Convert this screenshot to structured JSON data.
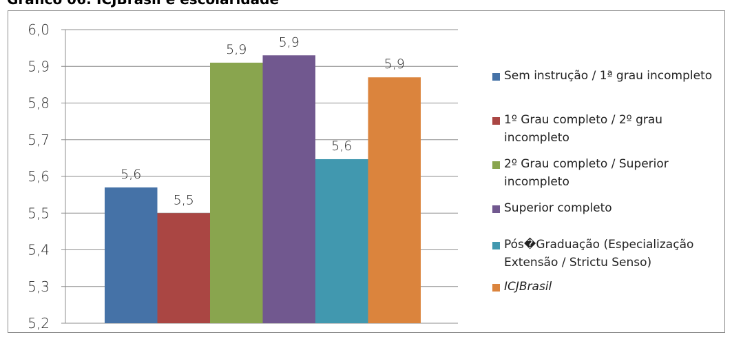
{
  "page": {
    "title": "Gráfico 06: ICJBrasil e escolaridade"
  },
  "chart_data": {
    "type": "bar",
    "title": "",
    "xlabel": "",
    "ylabel": "",
    "ylim": [
      5.2,
      6.0
    ],
    "yticks": [
      "6,0",
      "5,9",
      "5,8",
      "5,7",
      "5,6",
      "5,5",
      "5,4",
      "5,3",
      "5,2"
    ],
    "grid": true,
    "legend_position": "right",
    "series": [
      {
        "name": "Sem instrução / 1ª grau incompleto",
        "value": 5.57,
        "label": "5,6",
        "color": "#4572a7",
        "italic": false
      },
      {
        "name": "1º Grau completo / 2º grau incompleto",
        "value": 5.5,
        "label": "5,5",
        "color": "#aa4643",
        "italic": false
      },
      {
        "name": "2º Grau completo / Superior incompleto",
        "value": 5.91,
        "label": "5,9",
        "color": "#89a54e",
        "italic": false
      },
      {
        "name": "Superior completo",
        "value": 5.93,
        "label": "5,9",
        "color": "#71588f",
        "italic": false
      },
      {
        "name": "Pós�Graduação (Especialização Extensão / Strictu Senso)",
        "value": 5.647,
        "label": "5,6",
        "color": "#4198af",
        "italic": false
      },
      {
        "name": "ICJBrasil",
        "value": 5.87,
        "label": "5,9",
        "color": "#db843d",
        "italic": true
      }
    ]
  }
}
